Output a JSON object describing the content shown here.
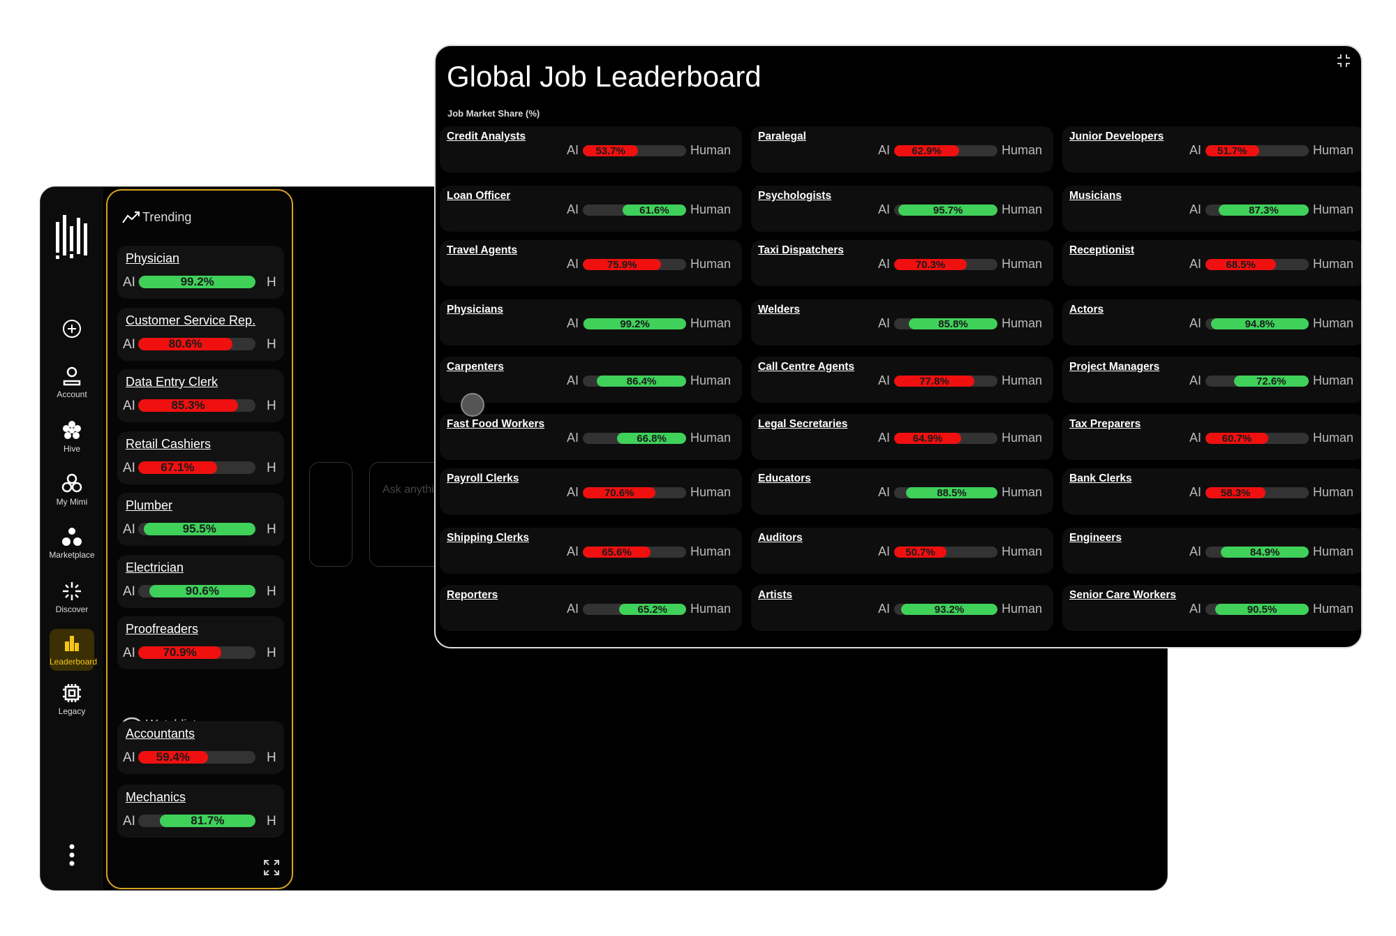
{
  "sidebar": {
    "nav": [
      "Account",
      "Hive",
      "My Mimi",
      "Marketplace",
      "Discover",
      "Leaderboard",
      "Legacy"
    ]
  },
  "trending": {
    "title": "Trending",
    "items": [
      {
        "name": "Physician",
        "value": 99.2,
        "label": "99.2%",
        "color": "#3fd15a"
      },
      {
        "name": "Customer Service Rep.",
        "value": 80.6,
        "label": "80.6%",
        "color": "#f01010"
      },
      {
        "name": "Data Entry Clerk",
        "value": 85.3,
        "label": "85.3%",
        "color": "#f01010"
      },
      {
        "name": "Retail Cashiers",
        "value": 67.1,
        "label": "67.1%",
        "color": "#f01010"
      },
      {
        "name": "Plumber",
        "value": 95.5,
        "label": "95.5%",
        "color": "#3fd15a"
      },
      {
        "name": "Electrician",
        "value": 90.6,
        "label": "90.6%",
        "color": "#3fd15a"
      },
      {
        "name": "Proofreaders",
        "value": 70.9,
        "label": "70.9%",
        "color": "#f01010"
      }
    ]
  },
  "watchlist": {
    "title": "Watchlist",
    "items": [
      {
        "name": "Accountants",
        "value": 59.4,
        "label": "59.4%",
        "color": "#f01010"
      },
      {
        "name": "Mechanics",
        "value": 81.7,
        "label": "81.7%",
        "color": "#3fd15a"
      }
    ]
  },
  "ai_label": "AI",
  "h_label": "H",
  "human_label": "Human",
  "ask_placeholder": "Ask anything",
  "leaderboard": {
    "title": "Global Job Leaderboard",
    "subtitle": "Job Market Share (%)",
    "items": [
      {
        "name": "Credit Analysts",
        "value": 53.7,
        "label": "53.7%",
        "color": "#f01010"
      },
      {
        "name": "Paralegal",
        "value": 62.9,
        "label": "62.9%",
        "color": "#f01010"
      },
      {
        "name": "Junior Developers",
        "value": 51.7,
        "label": "51.7%",
        "color": "#f01010"
      },
      {
        "name": "Loan Officer",
        "value": 61.6,
        "label": "61.6%",
        "color": "#3fd15a"
      },
      {
        "name": "Psychologists",
        "value": 95.7,
        "label": "95.7%",
        "color": "#3fd15a"
      },
      {
        "name": "Musicians",
        "value": 87.3,
        "label": "87.3%",
        "color": "#3fd15a"
      },
      {
        "name": "Travel Agents",
        "value": 75.9,
        "label": "75.9%",
        "color": "#f01010"
      },
      {
        "name": "Taxi Dispatchers",
        "value": 70.3,
        "label": "70.3%",
        "color": "#f01010"
      },
      {
        "name": "Receptionist",
        "value": 68.5,
        "label": "68.5%",
        "color": "#f01010"
      },
      {
        "name": "Physicians",
        "value": 99.2,
        "label": "99.2%",
        "color": "#3fd15a"
      },
      {
        "name": "Welders",
        "value": 85.8,
        "label": "85.8%",
        "color": "#3fd15a"
      },
      {
        "name": "Actors",
        "value": 94.8,
        "label": "94.8%",
        "color": "#3fd15a"
      },
      {
        "name": "Carpenters",
        "value": 86.4,
        "label": "86.4%",
        "color": "#3fd15a"
      },
      {
        "name": "Call Centre Agents",
        "value": 77.8,
        "label": "77.8%",
        "color": "#f01010"
      },
      {
        "name": "Project Managers",
        "value": 72.6,
        "label": "72.6%",
        "color": "#3fd15a"
      },
      {
        "name": "Fast Food Workers",
        "value": 66.8,
        "label": "66.8%",
        "color": "#3fd15a"
      },
      {
        "name": "Legal Secretaries",
        "value": 64.9,
        "label": "64.9%",
        "color": "#f01010"
      },
      {
        "name": "Tax Preparers",
        "value": 60.7,
        "label": "60.7%",
        "color": "#f01010"
      },
      {
        "name": "Payroll Clerks",
        "value": 70.6,
        "label": "70.6%",
        "color": "#f01010"
      },
      {
        "name": "Educators",
        "value": 88.5,
        "label": "88.5%",
        "color": "#3fd15a"
      },
      {
        "name": "Bank Clerks",
        "value": 58.3,
        "label": "58.3%",
        "color": "#f01010"
      },
      {
        "name": "Shipping Clerks",
        "value": 65.6,
        "label": "65.6%",
        "color": "#f01010"
      },
      {
        "name": "Auditors",
        "value": 50.7,
        "label": "50.7%",
        "color": "#f01010"
      },
      {
        "name": "Engineers",
        "value": 84.9,
        "label": "84.9%",
        "color": "#3fd15a"
      },
      {
        "name": "Reporters",
        "value": 65.2,
        "label": "65.2%",
        "color": "#3fd15a"
      },
      {
        "name": "Artists",
        "value": 93.2,
        "label": "93.2%",
        "color": "#3fd15a"
      },
      {
        "name": "Senior Care Workers",
        "value": 90.5,
        "label": "90.5%",
        "color": "#3fd15a"
      }
    ]
  }
}
